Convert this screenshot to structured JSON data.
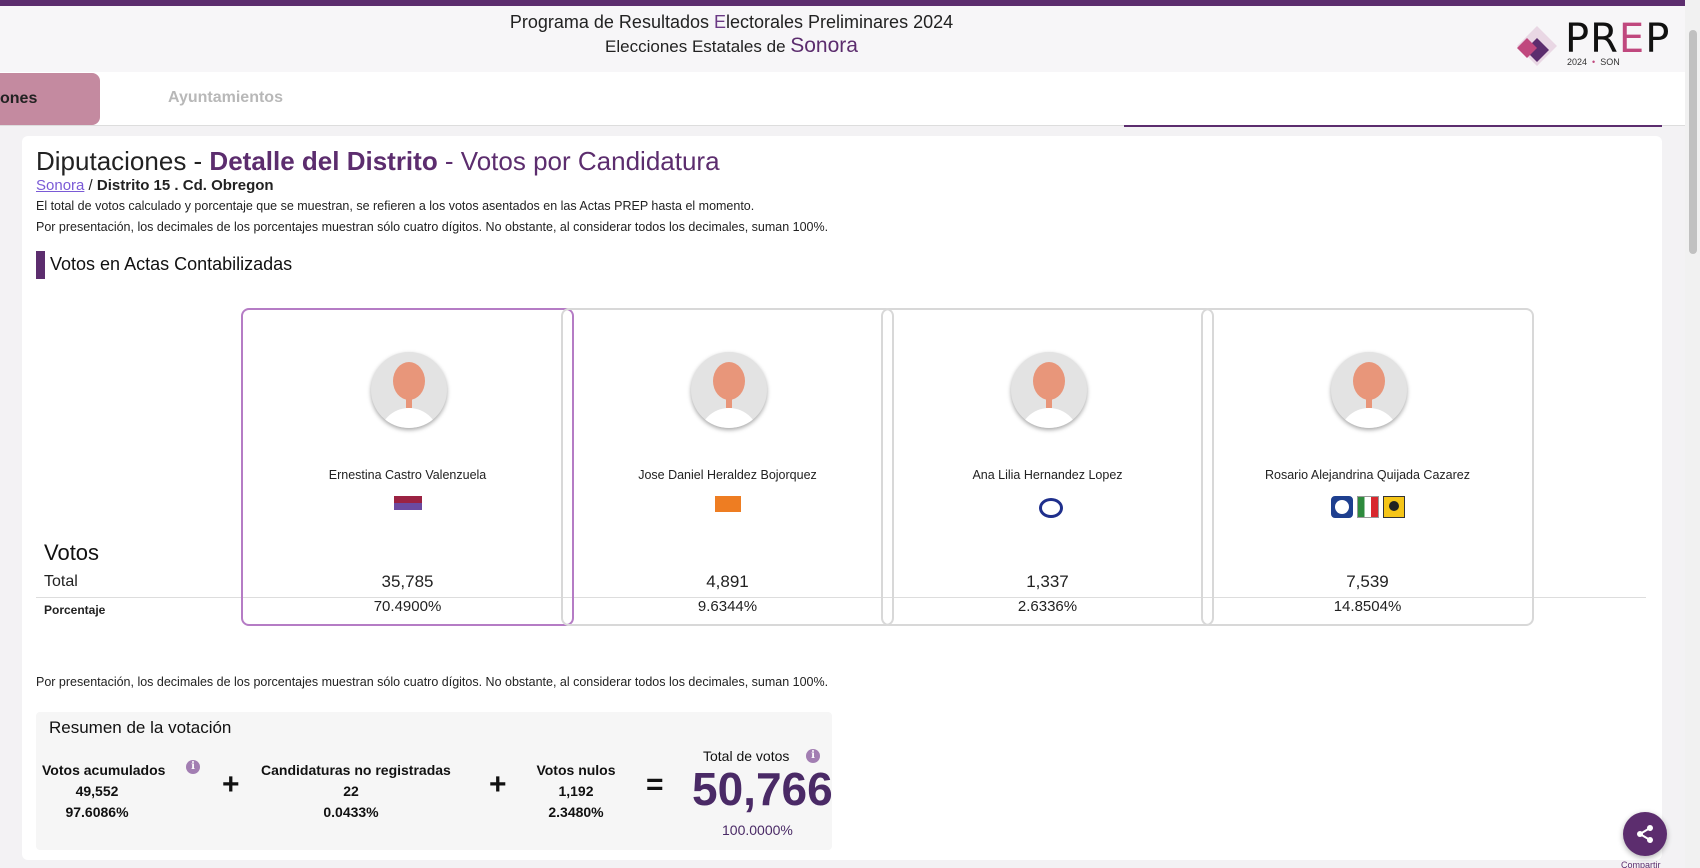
{
  "header": {
    "line1_prefix": "Programa de Resultados ",
    "line1_highlight": "E",
    "line1_suffix": "lectorales Preliminares 2024",
    "line2_prefix": "Elecciones Estatales de ",
    "line2_state": "Sonora"
  },
  "logo": {
    "word_a": "PR",
    "word_e": "E",
    "word_b": "P",
    "year": "2024",
    "dot": "•",
    "state_code": "SON"
  },
  "tabs": {
    "active_label": "ones",
    "other_label": "Ayuntamientos"
  },
  "page": {
    "title_a": "Diputaciones - ",
    "title_b": "Detalle del Distrito",
    "title_c": " - Votos por Candidatura",
    "breadcrumb_link": "Sonora",
    "breadcrumb_sep": " / ",
    "breadcrumb_current": "Distrito 15 . Cd. Obregon",
    "note1": "El total de votos calculado y porcentaje que se muestran, se refieren a los votos asentados en las Actas PREP hasta el momento.",
    "note2": "Por presentación, los decimales de los porcentajes muestran sólo cuatro dígitos. No obstante, al considerar todos los decimales, suman 100%.",
    "section_title": "Votos en Actas Contabilizadas"
  },
  "table_labels": {
    "votos": "Votos",
    "total": "Total",
    "porcentaje": "Porcentaje"
  },
  "candidates": [
    {
      "name": "Ernestina Castro Valenzuela",
      "total": "35,785",
      "pct": "70.4900%",
      "parties": [
        "morena-logo"
      ]
    },
    {
      "name": "Jose Daniel Heraldez Bojorquez",
      "total": "4,891",
      "pct": "9.6344%",
      "parties": [
        "movimiento-ciudadano-logo"
      ]
    },
    {
      "name": "Ana Lilia Hernandez Lopez",
      "total": "1,337",
      "pct": "2.6336%",
      "parties": [
        "pes-logo"
      ]
    },
    {
      "name": "Rosario Alejandrina Quijada Cazarez",
      "total": "7,539",
      "pct": "14.8504%",
      "parties": [
        "pan-logo",
        "pri-logo",
        "prd-logo"
      ]
    }
  ],
  "note3": "Por presentación, los decimales de los porcentajes muestran sólo cuatro dígitos. No obstante, al considerar todos los decimales, suman 100%.",
  "resumen": {
    "title": "Resumen de la votación",
    "acumulados_label": "Votos acumulados",
    "acumulados_value": "49,552",
    "acumulados_pct": "97.6086%",
    "no_reg_label": "Candidaturas no registradas",
    "no_reg_value": "22",
    "no_reg_pct": "0.0433%",
    "nulos_label": "Votos nulos",
    "nulos_value": "1,192",
    "nulos_pct": "2.3480%",
    "total_label": "Total de votos",
    "total_value": "50,766",
    "total_pct": "100.0000%",
    "plus": "+",
    "equals": "=",
    "info": "i"
  },
  "share": {
    "label": "Compartir"
  },
  "colors": {
    "brand": "#5c2d6e",
    "accent": "#c0487e",
    "winner_border": "#b57cc5"
  }
}
